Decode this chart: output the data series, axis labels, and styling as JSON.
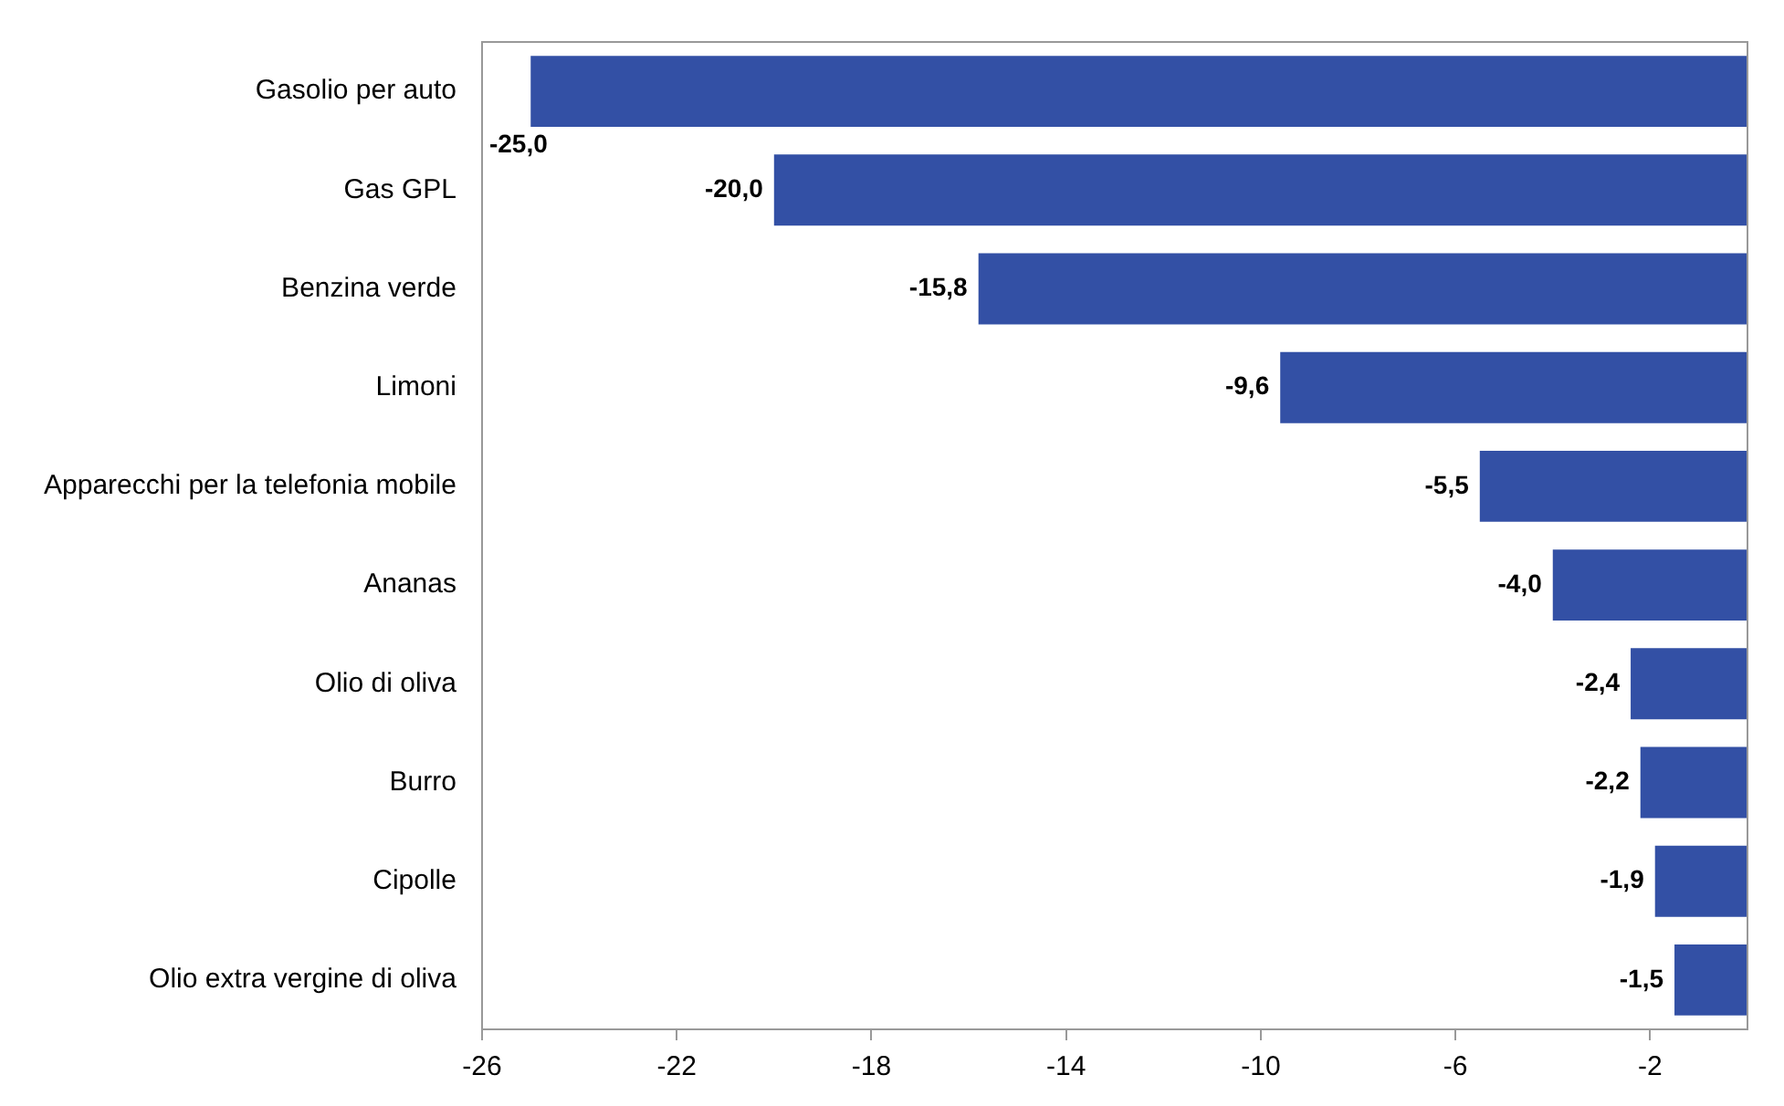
{
  "chart_data": {
    "type": "bar",
    "orientation": "horizontal",
    "categories": [
      "Gasolio per auto",
      "Gas GPL",
      "Benzina verde",
      "Limoni",
      "Apparecchi per la telefonia mobile",
      "Ananas",
      "Olio di oliva",
      "Burro",
      "Cipolle",
      "Olio extra vergine di oliva"
    ],
    "values": [
      -25.0,
      -20.0,
      -15.8,
      -9.6,
      -5.5,
      -4.0,
      -2.4,
      -2.2,
      -1.9,
      -1.5
    ],
    "value_labels": [
      "-25,0",
      "-20,0",
      "-15,8",
      "-9,6",
      "-5,5",
      "-4,0",
      "-2,4",
      "-2,2",
      "-1,9",
      "-1,5"
    ],
    "color": "#3350a5",
    "xlim": [
      -26,
      0
    ],
    "xticks": [
      -26,
      -22,
      -18,
      -14,
      -10,
      -6,
      -2
    ],
    "grid": false,
    "legend": false
  }
}
